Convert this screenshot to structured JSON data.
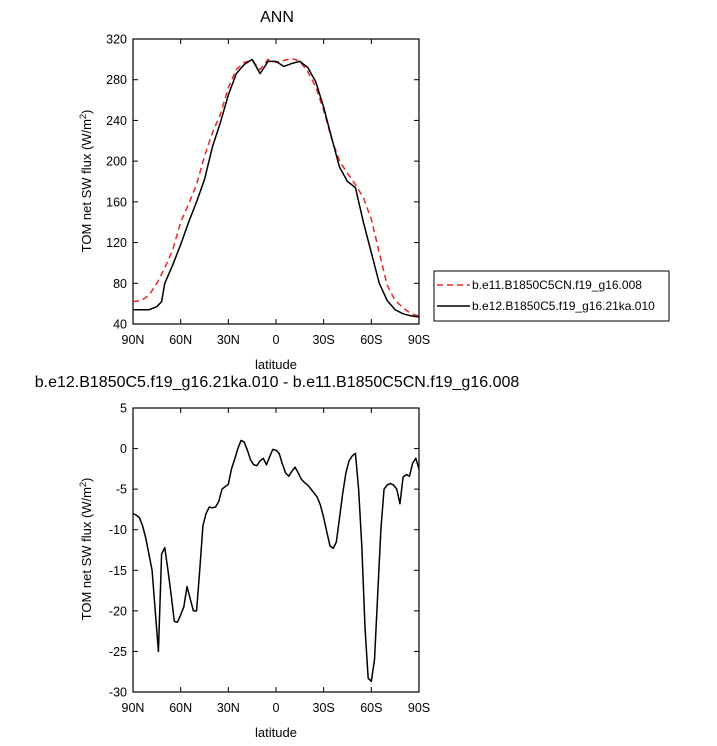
{
  "chart_data": [
    {
      "type": "line",
      "title": "ANN",
      "xlabel": "latitude",
      "ylabel": "TOM net SW flux (W/m",
      "ylabel_sup": "2",
      "ylabel_close": ")",
      "xlim": [
        90,
        -90
      ],
      "ylim": [
        40,
        320
      ],
      "x_ticks": [
        90,
        60,
        30,
        0,
        -30,
        -60,
        -90
      ],
      "x_tick_labels": [
        "90N",
        "60N",
        "30N",
        "0",
        "30S",
        "60S",
        "90S"
      ],
      "y_ticks": [
        40,
        80,
        120,
        160,
        200,
        240,
        280,
        320
      ],
      "y_tick_labels": [
        "40",
        "80",
        "120",
        "160",
        "200",
        "240",
        "280",
        "320"
      ],
      "grid": false,
      "legend_position": "right",
      "series": [
        {
          "name": "b.e11.B1850C5CN.f19_g16.008",
          "color": "#e8262b",
          "dash": "dashed",
          "x": [
            90,
            85,
            80,
            75,
            70,
            65,
            60,
            55,
            50,
            45,
            40,
            35,
            30,
            25,
            20,
            15,
            10,
            5,
            0,
            -5,
            -10,
            -15,
            -20,
            -25,
            -30,
            -35,
            -40,
            -45,
            -50,
            -55,
            -60,
            -65,
            -70,
            -75,
            -80,
            -85,
            -90
          ],
          "y": [
            62,
            63,
            68,
            80,
            95,
            113,
            140,
            158,
            177,
            205,
            228,
            246,
            272,
            290,
            297,
            299,
            290,
            300,
            297,
            299,
            301,
            298,
            288,
            273,
            250,
            222,
            200,
            188,
            177,
            164,
            143,
            110,
            78,
            63,
            56,
            50,
            48
          ]
        },
        {
          "name": "b.e12.B1850C5.f19_g16.21ka.010",
          "color": "#000000",
          "dash": "solid",
          "x": [
            90,
            85,
            80,
            75,
            72,
            70,
            65,
            60,
            55,
            50,
            45,
            40,
            35,
            30,
            25,
            20,
            15,
            10,
            5,
            0,
            -5,
            -10,
            -15,
            -20,
            -25,
            -30,
            -35,
            -40,
            -45,
            -50,
            -55,
            -60,
            -65,
            -70,
            -75,
            -80,
            -85,
            -90
          ],
          "y": [
            54,
            54,
            54,
            57,
            62,
            80,
            98,
            118,
            140,
            160,
            182,
            214,
            238,
            265,
            286,
            295,
            300,
            286,
            298,
            298,
            293,
            296,
            298,
            292,
            278,
            253,
            223,
            194,
            180,
            174,
            140,
            110,
            80,
            63,
            54,
            50,
            48,
            47
          ]
        }
      ]
    },
    {
      "type": "line",
      "title": "b.e12.B1850C5.f19_g16.21ka.010 - b.e11.B1850C5CN.f19_g16.008",
      "xlabel": "latitude",
      "ylabel": "TOM net SW flux (W/m",
      "ylabel_sup": "2",
      "ylabel_close": ")",
      "xlim": [
        90,
        -90
      ],
      "ylim": [
        -30,
        5
      ],
      "x_ticks": [
        90,
        60,
        30,
        0,
        -30,
        -60,
        -90
      ],
      "x_tick_labels": [
        "90N",
        "60N",
        "30N",
        "0",
        "30S",
        "60S",
        "90S"
      ],
      "y_ticks": [
        5,
        0,
        -5,
        -10,
        -15,
        -20,
        -25,
        -30
      ],
      "y_tick_labels": [
        "5",
        "0",
        "-5",
        "-10",
        "-15",
        "-20",
        "-25",
        "-30"
      ],
      "grid": false,
      "series": [
        {
          "color": "#000000",
          "dash": "solid",
          "x": [
            90,
            88,
            86,
            84,
            82,
            80,
            78,
            76,
            74,
            72,
            70,
            68,
            66,
            64,
            62,
            60,
            58,
            56,
            54,
            52,
            50,
            48,
            46,
            44,
            42,
            40,
            38,
            36,
            34,
            32,
            30,
            28,
            26,
            24,
            22,
            20,
            18,
            16,
            14,
            12,
            10,
            8,
            6,
            4,
            2,
            0,
            -2,
            -4,
            -6,
            -8,
            -10,
            -12,
            -14,
            -16,
            -18,
            -20,
            -22,
            -24,
            -26,
            -28,
            -30,
            -32,
            -34,
            -36,
            -38,
            -40,
            -42,
            -44,
            -46,
            -48,
            -50,
            -52,
            -54,
            -56,
            -58,
            -60,
            -62,
            -64,
            -66,
            -68,
            -70,
            -72,
            -74,
            -76,
            -78,
            -80,
            -82,
            -84,
            -86,
            -88,
            -90
          ],
          "y": [
            -8.0,
            -8.2,
            -8.5,
            -9.5,
            -11.0,
            -13.0,
            -15.0,
            -20.0,
            -25.0,
            -13.0,
            -12.2,
            -15.0,
            -18.0,
            -21.3,
            -21.4,
            -20.5,
            -19.5,
            -17.0,
            -18.5,
            -20.0,
            -20.0,
            -15.0,
            -9.5,
            -8.0,
            -7.2,
            -7.3,
            -7.2,
            -6.5,
            -5.0,
            -4.7,
            -4.4,
            -2.5,
            -1.3,
            0.0,
            1.0,
            0.8,
            -0.2,
            -1.4,
            -2.0,
            -2.1,
            -1.5,
            -1.2,
            -2.0,
            -1.0,
            -0.1,
            -0.2,
            -0.6,
            -1.9,
            -3.0,
            -3.4,
            -2.8,
            -2.3,
            -3.0,
            -3.8,
            -4.2,
            -4.5,
            -5.0,
            -5.5,
            -6.0,
            -7.0,
            -8.5,
            -10.3,
            -12.0,
            -12.3,
            -11.5,
            -8.5,
            -5.5,
            -3.0,
            -1.5,
            -0.9,
            -0.6,
            -5.0,
            -12.0,
            -22.0,
            -28.3,
            -28.7,
            -26.0,
            -18.0,
            -10.0,
            -5.0,
            -4.5,
            -4.3,
            -4.5,
            -5.0,
            -6.8,
            -3.5,
            -3.2,
            -3.4,
            -1.8,
            -1.2,
            -2.5
          ]
        }
      ]
    }
  ]
}
